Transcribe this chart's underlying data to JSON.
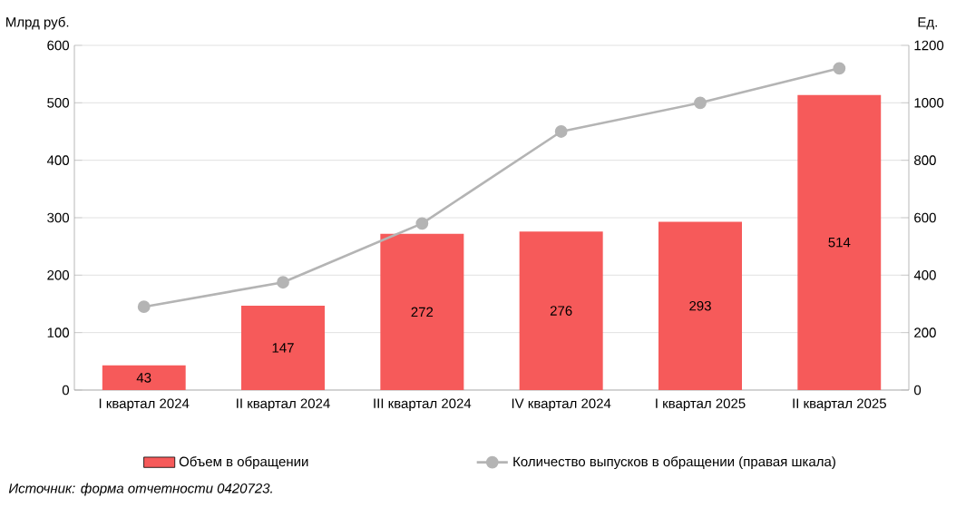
{
  "chart_data": {
    "type": "bar",
    "ylabel": "Млрд руб.",
    "y2label": "Ед.",
    "categories": [
      "I квартал 2024",
      "II квартал 2024",
      "III квартал 2024",
      "IV квартал 2024",
      "I квартал 2025",
      "II квартал 2025"
    ],
    "series": [
      {
        "name": "Объем в обращении",
        "color": "#f65a5a",
        "values": [
          43,
          147,
          272,
          276,
          293,
          514
        ],
        "value_labels": [
          "43",
          "147",
          "272",
          "276",
          "293",
          "514"
        ]
      },
      {
        "name": "Количество выпусков в обращении (правая шкала)",
        "type": "line",
        "axis": "y2",
        "color": "#b4b4b4",
        "values": [
          290,
          375,
          580,
          900,
          1000,
          1120
        ]
      }
    ],
    "ylim": [
      0,
      600
    ],
    "yticks": [
      0,
      100,
      200,
      300,
      400,
      500,
      600
    ],
    "y2lim": [
      0,
      1200
    ],
    "y2ticks": [
      0,
      200,
      400,
      600,
      800,
      1000,
      1200
    ],
    "grid": "y",
    "legend": "bottom",
    "marker": "circle",
    "line_style": "solid",
    "annotations": [
      "Источник: форма отчетности 0420723."
    ]
  }
}
